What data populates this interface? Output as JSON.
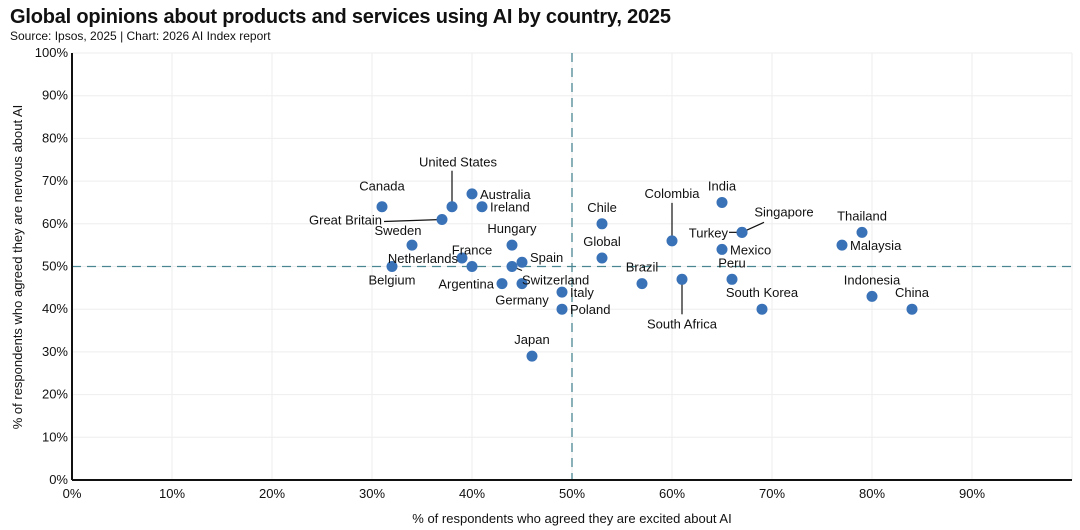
{
  "chart_data": {
    "type": "scatter",
    "title": "Global opinions about products and services using AI by country, 2025",
    "subtitle": "Source: Ipsos, 2025 | Chart: 2026 AI Index report",
    "xlabel": "% of respondents who agreed they are excited about AI",
    "ylabel": "% of respondents who agreed they are nervous about AI",
    "xlim": [
      0,
      100
    ],
    "ylim": [
      0,
      100
    ],
    "x_ticks": [
      "0%",
      "10%",
      "20%",
      "30%",
      "40%",
      "50%",
      "60%",
      "70%",
      "80%",
      "90%"
    ],
    "y_ticks": [
      "0%",
      "10%",
      "20%",
      "30%",
      "40%",
      "50%",
      "60%",
      "70%",
      "80%",
      "90%",
      "100%"
    ],
    "reference_lines": {
      "x": 50,
      "y": 50
    },
    "grid": true,
    "colors": {
      "point": "#3a72b8",
      "reference": "#4a8592",
      "grid": "#eeeeee",
      "axis": "#111111"
    },
    "points": [
      {
        "label": "Canada",
        "x": 31,
        "y": 64
      },
      {
        "label": "United States",
        "x": 38,
        "y": 64
      },
      {
        "label": "Great Britain",
        "x": 37,
        "y": 61
      },
      {
        "label": "Australia",
        "x": 40,
        "y": 67
      },
      {
        "label": "Ireland",
        "x": 41,
        "y": 64
      },
      {
        "label": "Sweden",
        "x": 34,
        "y": 55
      },
      {
        "label": "Netherlands",
        "x": 39,
        "y": 52
      },
      {
        "label": "France",
        "x": 40,
        "y": 50
      },
      {
        "label": "Belgium",
        "x": 32,
        "y": 50
      },
      {
        "label": "Hungary",
        "x": 44,
        "y": 55
      },
      {
        "label": "Spain",
        "x": 45,
        "y": 51
      },
      {
        "label": "Switzerland",
        "x": 44,
        "y": 50
      },
      {
        "label": "Argentina",
        "x": 43,
        "y": 46
      },
      {
        "label": "Germany",
        "x": 45,
        "y": 46
      },
      {
        "label": "Italy",
        "x": 49,
        "y": 44
      },
      {
        "label": "Poland",
        "x": 49,
        "y": 40
      },
      {
        "label": "Japan",
        "x": 46,
        "y": 29
      },
      {
        "label": "Chile",
        "x": 53,
        "y": 60
      },
      {
        "label": "Global",
        "x": 53,
        "y": 52
      },
      {
        "label": "Brazil",
        "x": 57,
        "y": 46
      },
      {
        "label": "Colombia",
        "x": 60,
        "y": 56
      },
      {
        "label": "South Africa",
        "x": 61,
        "y": 47
      },
      {
        "label": "India",
        "x": 65,
        "y": 65
      },
      {
        "label": "Turkey",
        "x": 67,
        "y": 58
      },
      {
        "label": "Singapore",
        "x": 67,
        "y": 58
      },
      {
        "label": "Mexico",
        "x": 65,
        "y": 54
      },
      {
        "label": "Peru",
        "x": 66,
        "y": 47
      },
      {
        "label": "South Korea",
        "x": 69,
        "y": 40
      },
      {
        "label": "Thailand",
        "x": 79,
        "y": 58
      },
      {
        "label": "Malaysia",
        "x": 77,
        "y": 55
      },
      {
        "label": "Indonesia",
        "x": 80,
        "y": 43
      },
      {
        "label": "China",
        "x": 84,
        "y": 40
      }
    ]
  }
}
